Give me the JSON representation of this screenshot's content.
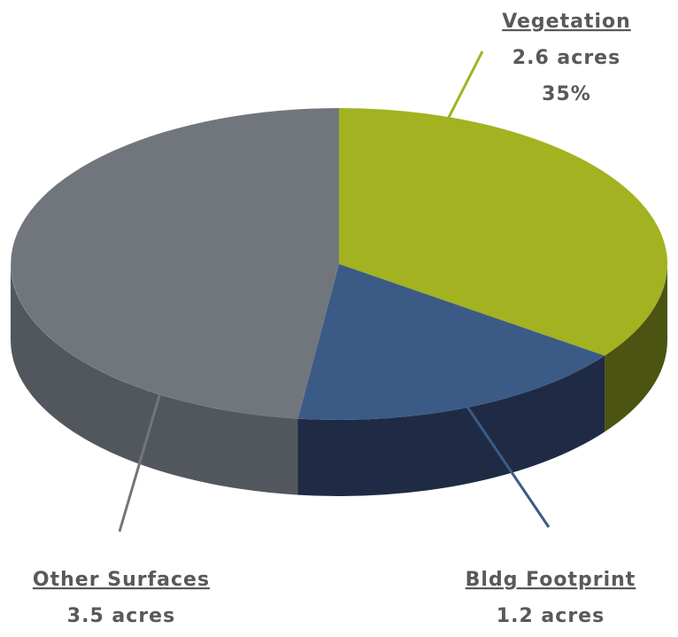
{
  "chart_data": {
    "type": "pie",
    "categories": [
      "Vegetation",
      "Bldg Footprint",
      "Other Surfaces"
    ],
    "values": [
      35,
      17,
      48
    ],
    "value_labels": [
      "35%",
      "17%",
      "48%"
    ],
    "areas": [
      2.6,
      1.2,
      3.5
    ],
    "area_labels": [
      "2.6 acres",
      "1.2 acres",
      "3.5 acres"
    ],
    "colors": [
      "#a2b220",
      "#3b5b86",
      "#71767d"
    ],
    "side_colors": [
      "#4b5410",
      "#1f2b45",
      "#52575e"
    ]
  }
}
